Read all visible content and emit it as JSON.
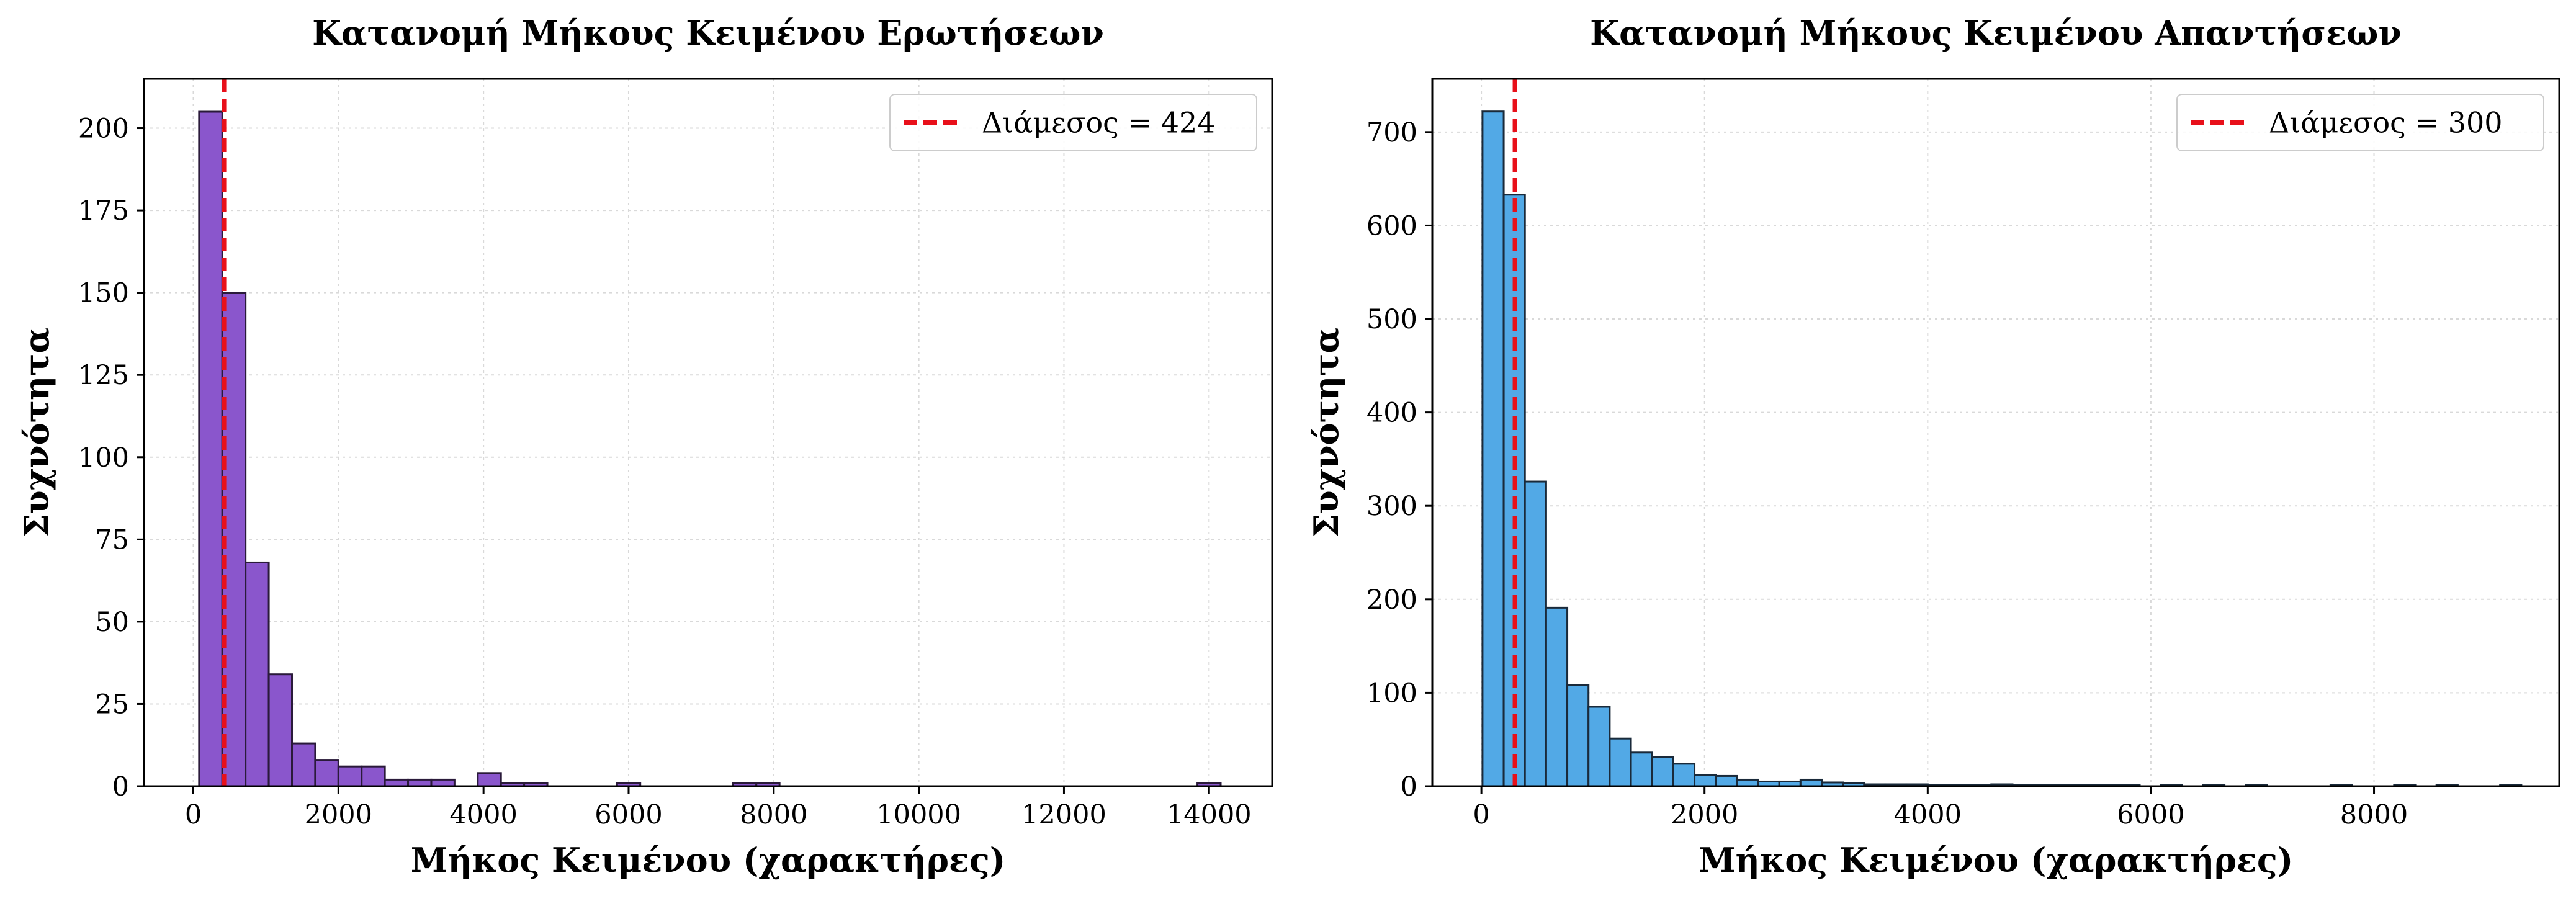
{
  "chart_data": [
    {
      "type": "bar",
      "subtype": "histogram",
      "title": "Κατανομή Μήκους Κειμένου Ερωτήσεων",
      "xlabel": "Μήκος Κειμένου (χαρακτήρες)",
      "ylabel": "Συχνότητα",
      "xlim": [
        -680,
        14870
      ],
      "ylim": [
        0,
        215
      ],
      "xticks": [
        0,
        2000,
        4000,
        6000,
        8000,
        10000,
        12000,
        14000
      ],
      "yticks": [
        0,
        25,
        50,
        75,
        100,
        125,
        150,
        175,
        200
      ],
      "bin_width": 320,
      "bins": [
        {
          "start": 80,
          "count": 205
        },
        {
          "start": 400,
          "count": 150
        },
        {
          "start": 720,
          "count": 68
        },
        {
          "start": 1040,
          "count": 34
        },
        {
          "start": 1360,
          "count": 13
        },
        {
          "start": 1680,
          "count": 8
        },
        {
          "start": 2000,
          "count": 6
        },
        {
          "start": 2320,
          "count": 6
        },
        {
          "start": 2640,
          "count": 2
        },
        {
          "start": 2960,
          "count": 2
        },
        {
          "start": 3280,
          "count": 2
        },
        {
          "start": 3600,
          "count": 0
        },
        {
          "start": 3920,
          "count": 4
        },
        {
          "start": 4240,
          "count": 1
        },
        {
          "start": 4560,
          "count": 1
        },
        {
          "start": 5840,
          "count": 1
        },
        {
          "start": 7440,
          "count": 1
        },
        {
          "start": 7760,
          "count": 1
        },
        {
          "start": 13840,
          "count": 1
        }
      ],
      "bar_color": "#8a56cc",
      "edge_color": "#2a1a3a",
      "grid": true,
      "median": {
        "value": 424,
        "label": "Διάμεσος = 424",
        "color": "#e8101a"
      },
      "legend_position": "top-right"
    },
    {
      "type": "bar",
      "subtype": "histogram",
      "title": "Κατανομή Μήκους Κειμένου Απαντήσεων",
      "xlabel": "Μήκος Κειμένου (χαρακτήρες)",
      "ylabel": "Συχνότητα",
      "xlim": [
        -440,
        9660
      ],
      "ylim": [
        0,
        757
      ],
      "xticks": [
        0,
        2000,
        4000,
        6000,
        8000
      ],
      "yticks": [
        0,
        100,
        200,
        300,
        400,
        500,
        600,
        700
      ],
      "bin_width": 190,
      "bins": [
        {
          "start": 10,
          "count": 722
        },
        {
          "start": 200,
          "count": 633
        },
        {
          "start": 390,
          "count": 326
        },
        {
          "start": 580,
          "count": 191
        },
        {
          "start": 770,
          "count": 108
        },
        {
          "start": 960,
          "count": 85
        },
        {
          "start": 1150,
          "count": 51
        },
        {
          "start": 1340,
          "count": 36
        },
        {
          "start": 1530,
          "count": 31
        },
        {
          "start": 1720,
          "count": 24
        },
        {
          "start": 1910,
          "count": 12
        },
        {
          "start": 2100,
          "count": 11
        },
        {
          "start": 2290,
          "count": 7
        },
        {
          "start": 2480,
          "count": 5
        },
        {
          "start": 2670,
          "count": 5
        },
        {
          "start": 2860,
          "count": 7
        },
        {
          "start": 3050,
          "count": 4
        },
        {
          "start": 3240,
          "count": 3
        },
        {
          "start": 3430,
          "count": 2
        },
        {
          "start": 3620,
          "count": 2
        },
        {
          "start": 3810,
          "count": 2
        },
        {
          "start": 4000,
          "count": 1
        },
        {
          "start": 4190,
          "count": 1
        },
        {
          "start": 4380,
          "count": 1
        },
        {
          "start": 4570,
          "count": 2
        },
        {
          "start": 4760,
          "count": 1
        },
        {
          "start": 4950,
          "count": 1
        },
        {
          "start": 5140,
          "count": 1
        },
        {
          "start": 5330,
          "count": 1
        },
        {
          "start": 5520,
          "count": 1
        },
        {
          "start": 5710,
          "count": 1
        },
        {
          "start": 6090,
          "count": 1
        },
        {
          "start": 6470,
          "count": 1
        },
        {
          "start": 6850,
          "count": 1
        },
        {
          "start": 7610,
          "count": 1
        },
        {
          "start": 8180,
          "count": 1
        },
        {
          "start": 8560,
          "count": 1
        },
        {
          "start": 9130,
          "count": 1
        }
      ],
      "bar_color": "#52a9e6",
      "edge_color": "#1a2a3a",
      "grid": true,
      "median": {
        "value": 300,
        "label": "Διάμεσος = 300",
        "color": "#e8101a"
      },
      "legend_position": "top-right"
    }
  ]
}
